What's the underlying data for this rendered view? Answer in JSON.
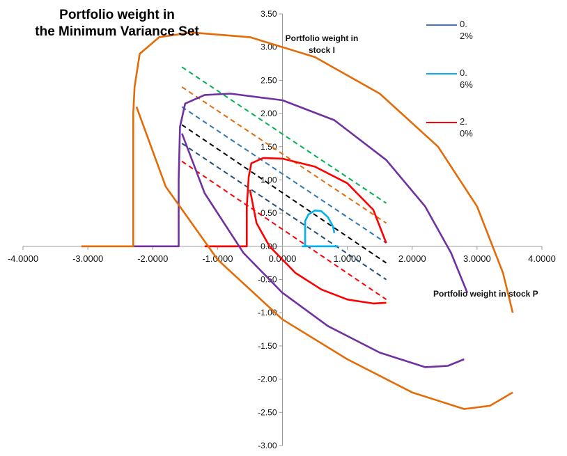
{
  "chart_data": {
    "type": "line",
    "title": "Portfolio weight in the Minimum Variance Set",
    "title_lines": [
      "Portfolio weight in",
      "the Minimum Variance Set"
    ],
    "xlabel": "Portfolio weight in stock P",
    "ylabel": "Portfolio weight in stock I",
    "ylabel_lines": [
      "Portfolio weight in",
      "stock I"
    ],
    "xlim": [
      -4,
      4
    ],
    "ylim": [
      -3,
      3.5
    ],
    "xticks": [
      "-4.0000",
      "-3.0000",
      "-2.0000",
      "-1.0000",
      "0.0000",
      "1.0000",
      "2.0000",
      "3.0000",
      "4.0000"
    ],
    "yticks": [
      "3.50",
      "3.00",
      "2.50",
      "2.00",
      "1.50",
      "1.00",
      "0.50",
      "0.00",
      "-0.50",
      "-1.00",
      "-1.50",
      "-2.00",
      "-2.50",
      "-3.00"
    ],
    "grid": false,
    "legend": {
      "position": "top-right",
      "entries": [
        {
          "label": "0.2%",
          "color": "#4472c4"
        },
        {
          "label": "0.6%",
          "color": "#00b0f0"
        },
        {
          "label": "2.0%",
          "color": "#ff0000"
        }
      ]
    },
    "series": [
      {
        "name": "0.2%",
        "color": "#4472c4",
        "points": []
      },
      {
        "name": "0.6%",
        "color": "#00b0f0",
        "points": [
          [
            0.3,
            0.0
          ],
          [
            0.85,
            0.0
          ],
          [
            0.35,
            0.0
          ],
          [
            0.35,
            0.38
          ],
          [
            0.4,
            0.48
          ],
          [
            0.5,
            0.54
          ],
          [
            0.6,
            0.53
          ],
          [
            0.7,
            0.44
          ],
          [
            0.78,
            0.3
          ],
          [
            0.8,
            0.2
          ]
        ]
      },
      {
        "name": "2.0%",
        "color": "#ff0000",
        "points": [
          [
            -1.2,
            0.0
          ],
          [
            -0.55,
            0.0
          ],
          [
            -0.55,
            0.6
          ],
          [
            -0.52,
            1.05
          ],
          [
            -0.48,
            1.25
          ],
          [
            -0.3,
            1.33
          ],
          [
            0.0,
            1.32
          ],
          [
            0.5,
            1.2
          ],
          [
            1.0,
            0.95
          ],
          [
            1.4,
            0.55
          ],
          [
            1.6,
            0.05
          ]
        ],
        "points2": [
          [
            -0.5,
            0.85
          ],
          [
            -0.4,
            0.35
          ],
          [
            -0.2,
            0.0
          ],
          [
            0.2,
            -0.4
          ],
          [
            0.6,
            -0.65
          ],
          [
            1.0,
            -0.8
          ],
          [
            1.4,
            -0.86
          ],
          [
            1.6,
            -0.85
          ]
        ]
      },
      {
        "name": "purple",
        "color": "#7030a0",
        "points": [
          [
            -2.3,
            0.0
          ],
          [
            -1.6,
            0.0
          ],
          [
            -1.6,
            1.0
          ],
          [
            -1.58,
            1.8
          ],
          [
            -1.5,
            2.15
          ],
          [
            -1.2,
            2.28
          ],
          [
            -0.8,
            2.3
          ],
          [
            0.0,
            2.2
          ],
          [
            0.8,
            1.9
          ],
          [
            1.6,
            1.3
          ],
          [
            2.2,
            0.6
          ],
          [
            2.6,
            -0.1
          ],
          [
            2.85,
            -0.7
          ]
        ],
        "points2": [
          [
            -1.55,
            1.7
          ],
          [
            -1.2,
            0.8
          ],
          [
            -0.6,
            -0.1
          ],
          [
            0.0,
            -0.7
          ],
          [
            0.7,
            -1.2
          ],
          [
            1.5,
            -1.6
          ],
          [
            2.2,
            -1.82
          ],
          [
            2.55,
            -1.8
          ],
          [
            2.8,
            -1.7
          ]
        ]
      },
      {
        "name": "orange",
        "color": "#e36c09",
        "points": [
          [
            -3.1,
            0.0
          ],
          [
            -2.3,
            0.0
          ],
          [
            -2.3,
            2.0
          ],
          [
            -2.28,
            2.4
          ],
          [
            -2.2,
            2.9
          ],
          [
            -1.9,
            3.15
          ],
          [
            -1.4,
            3.22
          ],
          [
            -0.5,
            3.15
          ],
          [
            0.5,
            2.85
          ],
          [
            1.5,
            2.3
          ],
          [
            2.4,
            1.5
          ],
          [
            3.0,
            0.6
          ],
          [
            3.4,
            -0.4
          ],
          [
            3.55,
            -1.0
          ]
        ],
        "points2": [
          [
            -2.25,
            2.1
          ],
          [
            -1.8,
            0.9
          ],
          [
            -1.0,
            -0.2
          ],
          [
            0.0,
            -1.1
          ],
          [
            1.0,
            -1.7
          ],
          [
            2.0,
            -2.2
          ],
          [
            2.8,
            -2.45
          ],
          [
            3.2,
            -2.4
          ],
          [
            3.55,
            -2.2
          ]
        ]
      }
    ],
    "dashed_lines": [
      {
        "color": "#00b050",
        "from": [
          -1.55,
          2.7
        ],
        "to": [
          1.6,
          0.65
        ]
      },
      {
        "color": "#e36c09",
        "from": [
          -1.55,
          2.4
        ],
        "to": [
          1.6,
          0.35
        ]
      },
      {
        "color": "#2e75b6",
        "from": [
          -1.55,
          2.1
        ],
        "to": [
          1.6,
          0.05
        ]
      },
      {
        "color": "#000000",
        "from": [
          -1.55,
          1.83
        ],
        "to": [
          1.6,
          -0.25
        ]
      },
      {
        "color": "#1f4e79",
        "from": [
          -1.55,
          1.55
        ],
        "to": [
          1.6,
          -0.5
        ]
      },
      {
        "color": "#ff0000",
        "from": [
          -1.55,
          1.28
        ],
        "to": [
          1.6,
          -0.8
        ]
      }
    ]
  }
}
